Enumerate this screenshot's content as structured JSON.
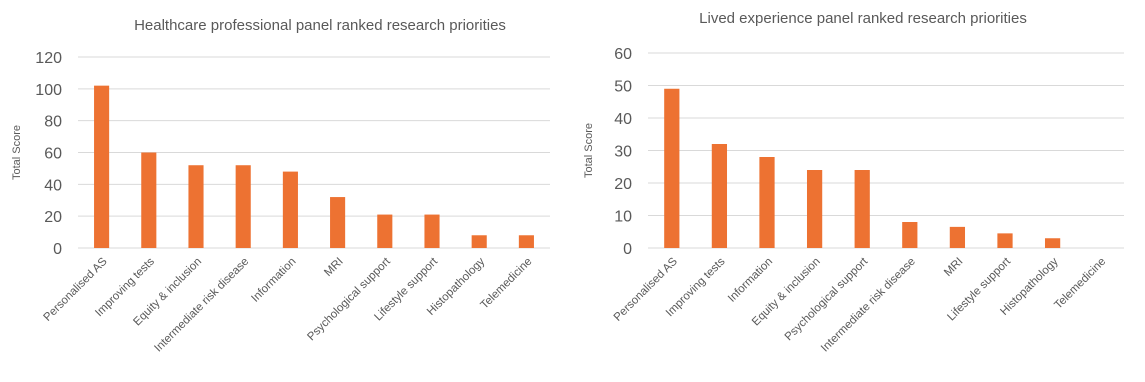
{
  "chart_data": [
    {
      "type": "bar",
      "title": "Healthcare professional panel ranked research priorities",
      "xlabel": "",
      "ylabel": "Total Score",
      "categories": [
        "Personalised AS",
        "Improving tests",
        "Equity & inclusion",
        "Intermediate risk disease",
        "Information",
        "MRI",
        "Psychological support",
        "Lifestyle support",
        "Histopathology",
        "Telemedicine"
      ],
      "values": [
        102,
        60,
        52,
        52,
        48,
        32,
        21,
        21,
        8,
        8
      ],
      "ylim": [
        0,
        120
      ],
      "yticks": [
        "0",
        "20",
        "40",
        "60",
        "80",
        "100",
        "120"
      ],
      "grid": true,
      "legend": "none",
      "bar_color": "#ED7232",
      "grid_color": "#d9d9d9"
    },
    {
      "type": "bar",
      "title": "Lived experience panel ranked research priorities",
      "xlabel": "",
      "ylabel": "Total Score",
      "categories": [
        "Personalised AS",
        "Improving tests",
        "Information",
        "Equity & inclusion",
        "Psychological support",
        "Intermediate risk disease",
        "MRI",
        "Lifestyle support",
        "Histopathology",
        "Telemedicine"
      ],
      "values": [
        49,
        32,
        28,
        24,
        24,
        8,
        6.5,
        4.5,
        3,
        0
      ],
      "ylim": [
        0,
        60
      ],
      "yticks": [
        "0",
        "10",
        "20",
        "30",
        "40",
        "50",
        "60"
      ],
      "grid": true,
      "legend": "none",
      "bar_color": "#ED7232",
      "grid_color": "#d9d9d9"
    }
  ]
}
